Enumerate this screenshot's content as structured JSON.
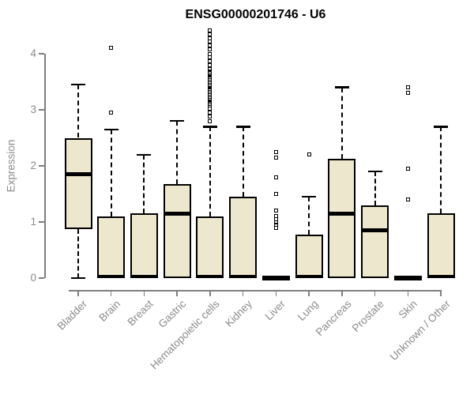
{
  "chart_data": {
    "type": "boxplot",
    "title": "ENSG00000201746 - U6",
    "ylabel": "Expression",
    "ylim": [
      0,
      4.45
    ],
    "yticks": [
      0,
      1,
      2,
      3,
      4
    ],
    "grid": false,
    "legend": null,
    "categories": [
      "Bladder",
      "Brain",
      "Breast",
      "Gastric",
      "Hematopoietic cells",
      "Kidney",
      "Liver",
      "Lung",
      "Pancreas",
      "Prostate",
      "Skin",
      "Unknown / Other"
    ],
    "boxes": [
      {
        "category": "Bladder",
        "whisker_low": 0,
        "q1": 0.88,
        "median": 1.85,
        "q3": 2.5,
        "whisker_high": 3.45,
        "outliers": []
      },
      {
        "category": "Brain",
        "whisker_low": 0,
        "q1": 0,
        "median": 0.03,
        "q3": 1.1,
        "whisker_high": 2.65,
        "outliers": [
          2.95,
          4.1
        ]
      },
      {
        "category": "Breast",
        "whisker_low": 0,
        "q1": 0,
        "median": 0.03,
        "q3": 1.15,
        "whisker_high": 2.2,
        "outliers": []
      },
      {
        "category": "Gastric",
        "whisker_low": 0,
        "q1": 0,
        "median": 1.15,
        "q3": 1.68,
        "whisker_high": 2.8,
        "outliers": []
      },
      {
        "category": "Hematopoietic cells",
        "whisker_low": 0,
        "q1": 0,
        "median": 0.03,
        "q3": 1.1,
        "whisker_high": 2.7,
        "outliers": [
          2.8,
          2.88,
          2.95,
          3.02,
          3.08,
          3.11,
          3.14,
          3.17,
          3.2,
          3.23,
          3.26,
          3.29,
          3.32,
          3.35,
          3.38,
          3.41,
          3.44,
          3.47,
          3.5,
          3.53,
          3.56,
          3.59,
          3.62,
          3.65,
          3.68,
          3.72,
          3.79,
          3.86,
          3.93,
          4.0,
          4.08,
          4.15,
          4.22,
          4.28,
          4.35,
          4.42
        ]
      },
      {
        "category": "Kidney",
        "whisker_low": 0,
        "q1": 0,
        "median": 0.03,
        "q3": 1.45,
        "whisker_high": 2.7,
        "outliers": []
      },
      {
        "category": "Liver",
        "whisker_low": 0,
        "q1": 0,
        "median": 0,
        "q3": 0,
        "whisker_high": 0,
        "outliers": [
          0.9,
          0.95,
          1.0,
          1.05,
          1.1,
          1.2,
          1.5,
          1.8,
          2.15,
          2.25
        ]
      },
      {
        "category": "Lung",
        "whisker_low": 0,
        "q1": 0,
        "median": 0.03,
        "q3": 0.78,
        "whisker_high": 1.45,
        "outliers": [
          2.2
        ]
      },
      {
        "category": "Pancreas",
        "whisker_low": 0,
        "q1": 0,
        "median": 1.15,
        "q3": 2.13,
        "whisker_high": 3.4,
        "outliers": []
      },
      {
        "category": "Prostate",
        "whisker_low": 0,
        "q1": 0,
        "median": 0.85,
        "q3": 1.3,
        "whisker_high": 1.9,
        "outliers": []
      },
      {
        "category": "Skin",
        "whisker_low": 0,
        "q1": 0,
        "median": 0,
        "q3": 0,
        "whisker_high": 0,
        "outliers": [
          1.4,
          1.95,
          3.3,
          3.4
        ]
      },
      {
        "category": "Unknown / Other",
        "whisker_low": 0,
        "q1": 0,
        "median": 0.03,
        "q3": 1.15,
        "whisker_high": 2.7,
        "outliers": []
      }
    ],
    "colors": {
      "box_fill": "#ECE7CD",
      "box_border": "#000000",
      "axis": "#7F7F7F",
      "tick_label": "#8B8B8B",
      "title": "#000000",
      "background": "#FFFFFF"
    }
  }
}
